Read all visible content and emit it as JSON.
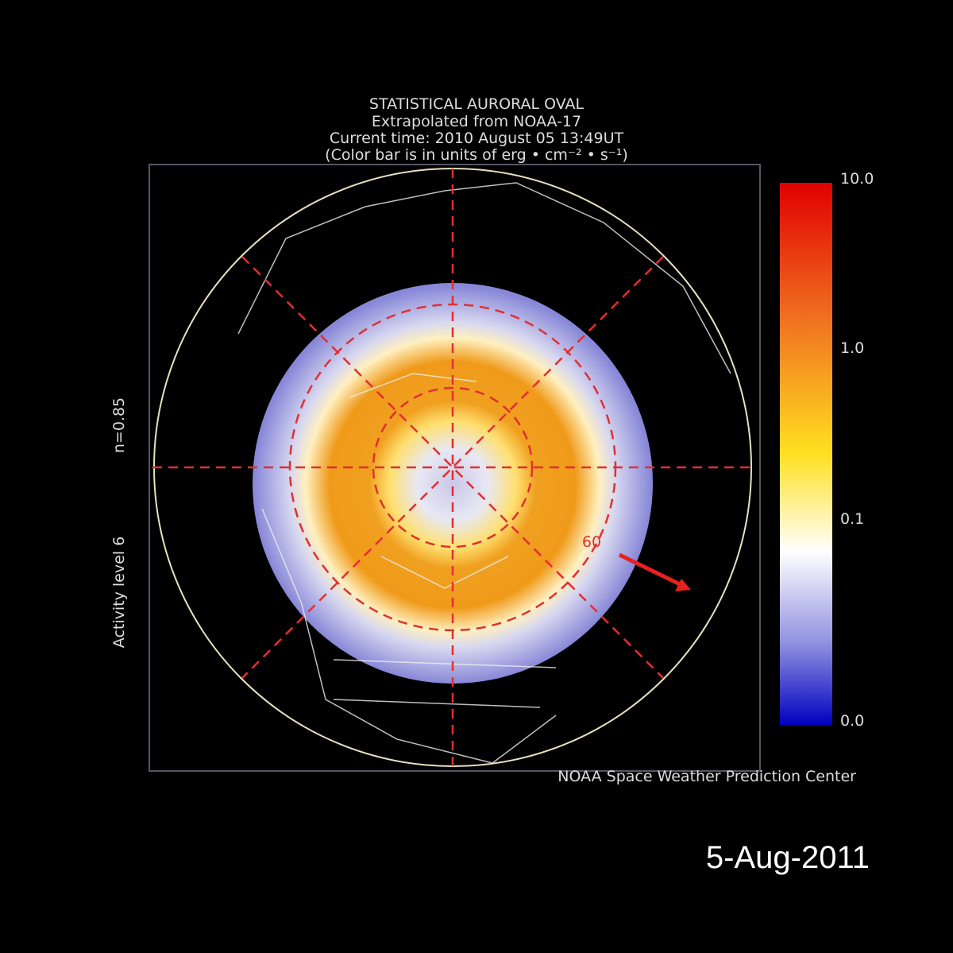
{
  "title": {
    "lines": [
      "STATISTICAL AURORAL OVAL",
      "Extrapolated from NOAA-17",
      "Current time: 2010 August 05 13:49UT",
      "(Color bar is in units of erg • cm⁻² • s⁻¹)"
    ]
  },
  "side_labels": [
    "Activity level 6",
    "n=0.85"
  ],
  "colorbar": {
    "ticks": [
      "10.0",
      "1.0",
      "0.1",
      "0.0"
    ]
  },
  "annotation": "60",
  "credit": "NOAA Space Weather Prediction Center",
  "date": "5-Aug-2011"
}
